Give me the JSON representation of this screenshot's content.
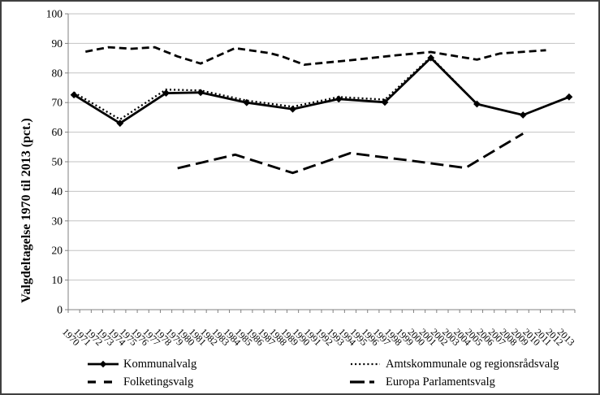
{
  "colors": {
    "background": "#ffffff",
    "border": "#3f3f3f",
    "line": "#000000",
    "gridline": "#c2c2c2",
    "axis": "#808080",
    "text": "#000000"
  },
  "chart_data": {
    "type": "line",
    "title": "",
    "xlabel": "",
    "ylabel": "Valgdeltagelse 1970 til 2013 (pct.)",
    "ylim": [
      0,
      100
    ],
    "yticks": [
      0,
      10,
      20,
      30,
      40,
      50,
      60,
      70,
      80,
      90,
      100
    ],
    "grid": "horizontal",
    "legend_position": "bottom-two-columns",
    "x_categories": [
      "1970",
      "1971",
      "1972",
      "1973",
      "1974",
      "1975",
      "1976",
      "1977",
      "1978",
      "1979",
      "1980",
      "1981",
      "1982",
      "1983",
      "1984",
      "1985",
      "1986",
      "1987",
      "1988",
      "1989",
      "1990",
      "1991",
      "1992",
      "1993",
      "1994",
      "1995",
      "1996",
      "1997",
      "1998",
      "1999",
      "2000",
      "2001",
      "2002",
      "2003",
      "2004",
      "2005",
      "2006",
      "2007",
      "2008",
      "2009",
      "2010",
      "2011",
      "2012",
      "2013"
    ],
    "series": [
      {
        "name": "Kommunalvalg",
        "style": "solid",
        "marker": "diamond",
        "color": "#000000",
        "points": [
          [
            "1970",
            72.6
          ],
          [
            "1974",
            63.0
          ],
          [
            "1978",
            73.2
          ],
          [
            "1981",
            73.4
          ],
          [
            "1985",
            70.0
          ],
          [
            "1989",
            67.8
          ],
          [
            "1993",
            71.2
          ],
          [
            "1997",
            70.1
          ],
          [
            "2001",
            85.1
          ],
          [
            "2005",
            69.5
          ],
          [
            "2009",
            65.8
          ],
          [
            "2013",
            71.9
          ]
        ]
      },
      {
        "name": "Amtskommunale og regionsrådsvalg",
        "style": "dotted",
        "marker": "none",
        "color": "#000000",
        "points": [
          [
            "1970",
            73.4
          ],
          [
            "1974",
            64.3
          ],
          [
            "1978",
            74.4
          ],
          [
            "1981",
            74.1
          ],
          [
            "1985",
            70.7
          ],
          [
            "1989",
            68.6
          ],
          [
            "1993",
            71.9
          ],
          [
            "1997",
            71.0
          ],
          [
            "2001",
            85.4
          ],
          [
            "2005",
            69.5
          ]
        ]
      },
      {
        "name": "Folketingsvalg",
        "style": "dashed",
        "marker": "none",
        "color": "#000000",
        "points": [
          [
            "1971",
            87.2
          ],
          [
            "1973",
            88.7
          ],
          [
            "1975",
            88.2
          ],
          [
            "1977",
            88.7
          ],
          [
            "1979",
            85.6
          ],
          [
            "1981",
            83.2
          ],
          [
            "1984",
            88.4
          ],
          [
            "1987",
            86.7
          ],
          [
            "1988",
            85.7
          ],
          [
            "1990",
            82.8
          ],
          [
            "1994",
            84.3
          ],
          [
            "1998",
            86.0
          ],
          [
            "2001",
            87.1
          ],
          [
            "2005",
            84.5
          ],
          [
            "2007",
            86.6
          ],
          [
            "2011",
            87.7
          ]
        ]
      },
      {
        "name": "Europa Parlamentsvalg",
        "style": "longdash",
        "marker": "none",
        "color": "#000000",
        "points": [
          [
            "1979",
            47.8
          ],
          [
            "1984",
            52.4
          ],
          [
            "1989",
            46.2
          ],
          [
            "1994",
            52.9
          ],
          [
            "1999",
            50.5
          ],
          [
            "2004",
            47.9
          ],
          [
            "2009",
            59.5
          ]
        ]
      }
    ]
  }
}
